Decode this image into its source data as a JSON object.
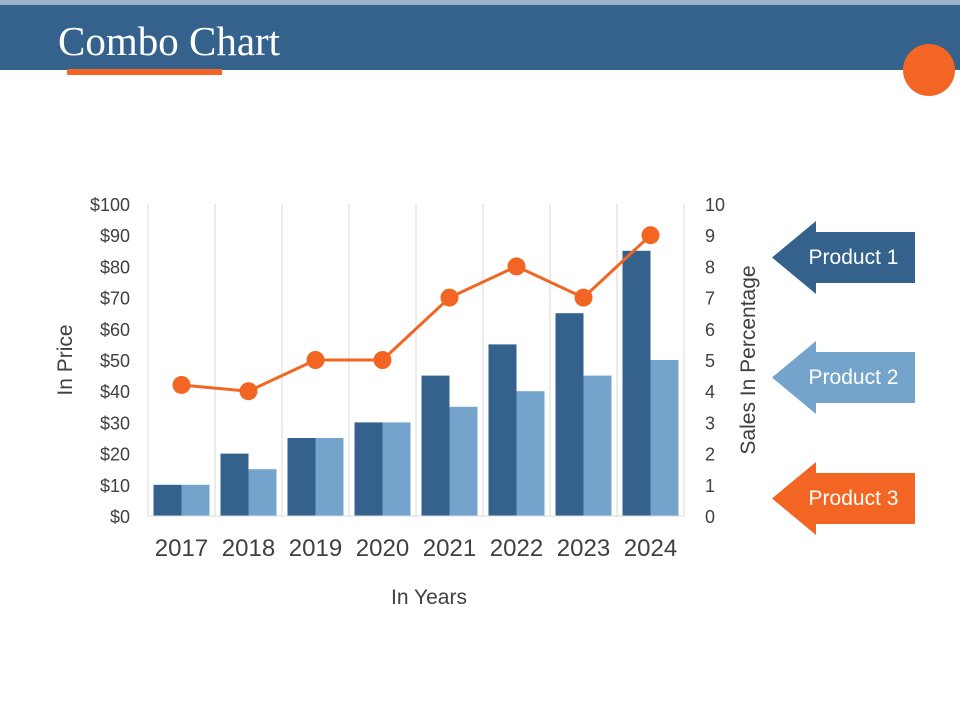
{
  "slide": {
    "title": "Combo Chart"
  },
  "colors": {
    "header": "#34628c",
    "accent": "#f26522",
    "series1": "#34628c",
    "series2": "#74a3cc",
    "series3": "#f26522",
    "grid": "#d9d9d9",
    "text": "#404040"
  },
  "legend": [
    {
      "label": "Product 1",
      "color": "#34628c"
    },
    {
      "label": "Product 2",
      "color": "#74a3cc"
    },
    {
      "label": "Product 3",
      "color": "#f26522"
    }
  ],
  "chart_data": {
    "type": "bar",
    "title": "",
    "xlabel": "In Years",
    "ylabel": "In Price",
    "y2label": "Sales In Percentage",
    "categories": [
      "2017",
      "2018",
      "2019",
      "2020",
      "2021",
      "2022",
      "2023",
      "2024"
    ],
    "ylim": [
      0,
      100
    ],
    "y_ticks": [
      "$0",
      "$10",
      "$20",
      "$30",
      "$40",
      "$50",
      "$60",
      "$70",
      "$80",
      "$90",
      "$100"
    ],
    "y2lim": [
      0,
      10
    ],
    "y2_ticks": [
      "0",
      "1",
      "2",
      "3",
      "4",
      "5",
      "6",
      "7",
      "8",
      "9",
      "10"
    ],
    "grid": "vertical",
    "legend_position": "right",
    "series": [
      {
        "name": "Product 1",
        "type": "bar",
        "axis": "left",
        "values": [
          10,
          20,
          25,
          30,
          45,
          55,
          65,
          85
        ]
      },
      {
        "name": "Product 2",
        "type": "bar",
        "axis": "left",
        "values": [
          10,
          15,
          25,
          30,
          35,
          40,
          45,
          50
        ]
      },
      {
        "name": "Product 3",
        "type": "line",
        "axis": "right",
        "values": [
          4.2,
          4,
          5,
          5,
          7,
          8,
          7,
          9
        ]
      }
    ]
  }
}
